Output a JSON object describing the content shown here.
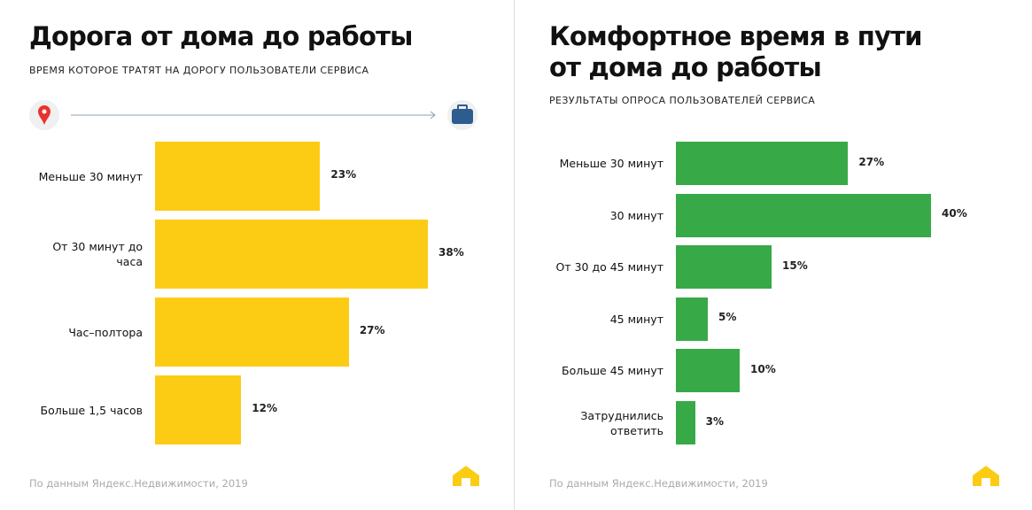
{
  "chart_data": [
    {
      "type": "bar",
      "orientation": "horizontal",
      "title": "Дорога от дома до работы",
      "subtitle": "ВРЕМЯ КОТОРОЕ ТРАТЯТ НА ДОРОГУ ПОЛЬЗОВАТЕЛИ СЕРВИСА",
      "categories": [
        "Меньше 30 минут",
        "От 30 минут до часа",
        "Час–полтора",
        "Больше 1,5 часов"
      ],
      "values": [
        23,
        38,
        27,
        12
      ],
      "value_labels": [
        "23%",
        "38%",
        "27%",
        "12%"
      ],
      "color": "#fccc14",
      "source": "По данным Яндекс.Недвижимости, 2019"
    },
    {
      "type": "bar",
      "orientation": "horizontal",
      "title": "Комфортное время в пути\nот дома до работы",
      "subtitle": "РЕЗУЛЬТАТЫ ОПРОСА ПОЛЬЗОВАТЕЛЕЙ СЕРВИСА",
      "categories": [
        "Меньше 30 минут",
        "30 минут",
        "От 30 до 45 минут",
        "45 минут",
        "Больше 45 минут",
        "Затруднились ответить"
      ],
      "values": [
        27,
        40,
        15,
        5,
        10,
        3
      ],
      "value_labels": [
        "27%",
        "40%",
        "15%",
        "5%",
        "10%",
        "3%"
      ],
      "color": "#38a947",
      "source": "По данным Яндекс.Недвижимости, 2019"
    }
  ]
}
